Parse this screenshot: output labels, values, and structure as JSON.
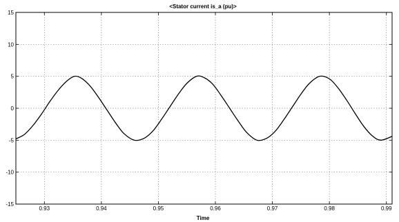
{
  "chart_data": {
    "type": "line",
    "title": "<Stator current is_a (pu)>",
    "xlabel": "Time",
    "ylabel": "",
    "xlim": [
      0.925,
      0.991
    ],
    "ylim": [
      -15,
      15
    ],
    "x_ticks": [
      0.93,
      0.94,
      0.95,
      0.96,
      0.97,
      0.98,
      0.99
    ],
    "y_ticks": [
      -15,
      -10,
      -5,
      0,
      5,
      10,
      15
    ],
    "x_tick_labels": [
      "0.93",
      "0.94",
      "0.95",
      "0.96",
      "0.97",
      "0.98",
      "0.99"
    ],
    "y_tick_labels": [
      "-15",
      "-10",
      "-5",
      "0",
      "5",
      "10",
      "15"
    ],
    "grid": true,
    "grid_style": "dotted",
    "series": [
      {
        "color": "#000000",
        "x": [
          0.925,
          0.9265,
          0.928,
          0.9295,
          0.931,
          0.9325,
          0.934,
          0.9353,
          0.9365,
          0.938,
          0.9395,
          0.941,
          0.9425,
          0.944,
          0.9458,
          0.9475,
          0.949,
          0.9505,
          0.952,
          0.9535,
          0.955,
          0.9567,
          0.958,
          0.9595,
          0.961,
          0.9625,
          0.964,
          0.9655,
          0.9673,
          0.969,
          0.9705,
          0.972,
          0.9735,
          0.975,
          0.9765,
          0.9783,
          0.98,
          0.9815,
          0.983,
          0.9845,
          0.986,
          0.9875,
          0.989,
          0.991
        ],
        "y": [
          -4.8,
          -4.1,
          -2.7,
          -0.9,
          1.1,
          2.9,
          4.3,
          5.0,
          4.7,
          3.5,
          1.7,
          -0.3,
          -2.3,
          -4.0,
          -5.0,
          -4.7,
          -3.6,
          -1.8,
          0.2,
          2.2,
          3.9,
          5.0,
          4.8,
          3.8,
          2.0,
          0.0,
          -2.0,
          -3.8,
          -5.0,
          -4.7,
          -3.6,
          -1.8,
          0.2,
          2.2,
          3.9,
          5.0,
          4.6,
          3.2,
          1.3,
          -0.8,
          -2.8,
          -4.3,
          -5.0,
          -4.4
        ]
      }
    ]
  }
}
